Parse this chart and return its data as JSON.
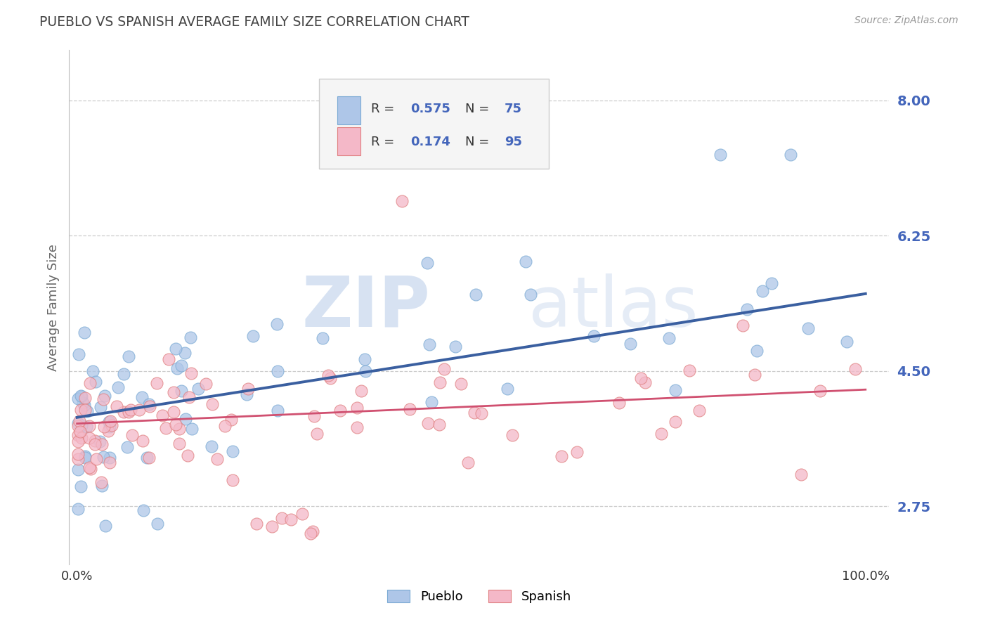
{
  "title": "PUEBLO VS SPANISH AVERAGE FAMILY SIZE CORRELATION CHART",
  "ylabel": "Average Family Size",
  "source_text": "Source: ZipAtlas.com",
  "watermark_zip": "ZIP",
  "watermark_atlas": "atlas",
  "yticks": [
    2.75,
    4.5,
    6.25,
    8.0
  ],
  "pueblo_R": 0.575,
  "pueblo_N": 75,
  "spanish_R": 0.174,
  "spanish_N": 95,
  "pueblo_color": "#aec6e8",
  "pueblo_edge_color": "#7baad4",
  "pueblo_line_color": "#3a5fa0",
  "spanish_color": "#f4b8c8",
  "spanish_edge_color": "#e08080",
  "spanish_line_color": "#d05070",
  "title_color": "#444444",
  "tick_color": "#4466bb",
  "ylabel_color": "#666666",
  "background_color": "#ffffff",
  "grid_color": "#cccccc",
  "legend_box_color": "#f5f5f5",
  "legend_box_edge": "#cccccc",
  "watermark_color": "#d0ddf0",
  "source_color": "#999999"
}
